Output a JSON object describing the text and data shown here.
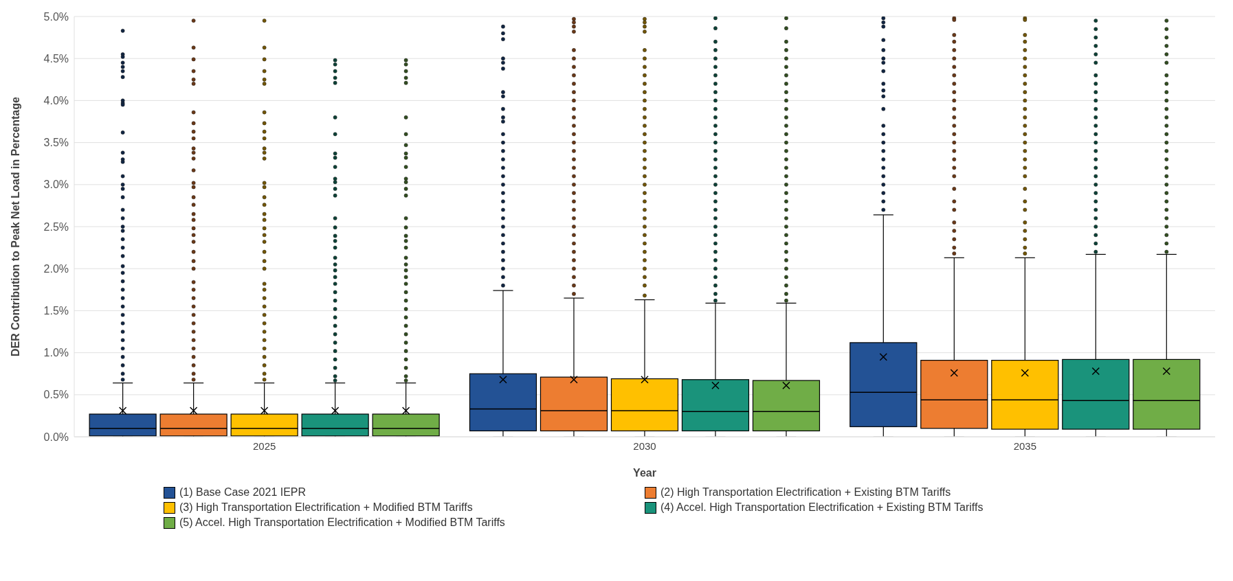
{
  "chart_data": {
    "type": "box",
    "xlabel": "Year",
    "ylabel": "DER Contribution to Peak Net Load in Percentage",
    "categories": [
      "2025",
      "2030",
      "2035"
    ],
    "ylim": [
      0,
      5
    ],
    "yticks": [
      {
        "value": 0,
        "label": "0.0%"
      },
      {
        "value": 0.5,
        "label": "0.5%"
      },
      {
        "value": 1,
        "label": "1.0%"
      },
      {
        "value": 1.5,
        "label": "1.5%"
      },
      {
        "value": 2,
        "label": "2.0%"
      },
      {
        "value": 2.5,
        "label": "2.5%"
      },
      {
        "value": 3,
        "label": "3.0%"
      },
      {
        "value": 3.5,
        "label": "3.5%"
      },
      {
        "value": 4,
        "label": "4.0%"
      },
      {
        "value": 4.5,
        "label": "4.5%"
      },
      {
        "value": 5,
        "label": "5.0%"
      }
    ],
    "grid": "y",
    "legend": "bottom",
    "series": [
      {
        "name": "(1) Base Case 2021 IEPR",
        "color": "#235295",
        "boxes": [
          {
            "low": 0,
            "q1": 0.01,
            "median": 0.1,
            "q3": 0.27,
            "high": 0.64,
            "mean": 0.31,
            "outliers": [
              4.83,
              4.55,
              4.52,
              4.45,
              4.4,
              4.35,
              4.28,
              4.0,
              3.97,
              3.95,
              3.62,
              3.38,
              3.3,
              3.27,
              3.1,
              3.0,
              2.95,
              2.85,
              2.7,
              2.6,
              2.5,
              2.45,
              2.35,
              2.25,
              2.15,
              2.03,
              1.95,
              1.85,
              1.75,
              1.65,
              1.55,
              1.45,
              1.35,
              1.25,
              1.15,
              1.05,
              0.95,
              0.85,
              0.75,
              0.68
            ]
          },
          {
            "low": 0,
            "q1": 0.07,
            "median": 0.33,
            "q3": 0.75,
            "high": 1.74,
            "mean": 0.68,
            "outliers": [
              4.88,
              4.8,
              4.73,
              4.5,
              4.45,
              4.38,
              4.1,
              4.05,
              3.9,
              3.8,
              3.75,
              3.6,
              3.5,
              3.4,
              3.3,
              3.2,
              3.1,
              3.0,
              2.9,
              2.8,
              2.7,
              2.6,
              2.5,
              2.4,
              2.3,
              2.2,
              2.1,
              2.0,
              1.9,
              1.8
            ]
          },
          {
            "low": 0,
            "q1": 0.12,
            "median": 0.53,
            "q3": 1.12,
            "high": 2.64,
            "mean": 0.95,
            "outliers": [
              4.98,
              4.93,
              4.88,
              4.72,
              4.6,
              4.5,
              4.45,
              4.35,
              4.2,
              4.12,
              4.05,
              3.9,
              3.7,
              3.6,
              3.5,
              3.4,
              3.3,
              3.2,
              3.1,
              3.0,
              2.9,
              2.8,
              2.7
            ]
          }
        ]
      },
      {
        "name": "(2) High Transportation Electrification + Existing BTM Tariffs",
        "color": "#ed7d31",
        "boxes": [
          {
            "low": 0,
            "q1": 0.01,
            "median": 0.1,
            "q3": 0.27,
            "high": 0.64,
            "mean": 0.31,
            "outliers": [
              4.95,
              4.63,
              4.49,
              4.35,
              4.25,
              4.2,
              3.86,
              3.73,
              3.63,
              3.55,
              3.43,
              3.38,
              3.31,
              3.17,
              3.02,
              2.97,
              2.85,
              2.76,
              2.65,
              2.58,
              2.48,
              2.4,
              2.32,
              2.2,
              2.09,
              2.0,
              1.84,
              1.75,
              1.65,
              1.55,
              1.45,
              1.35,
              1.25,
              1.15,
              1.05,
              0.95,
              0.85,
              0.75,
              0.68
            ]
          },
          {
            "low": 0,
            "q1": 0.07,
            "median": 0.31,
            "q3": 0.71,
            "high": 1.65,
            "mean": 0.68,
            "outliers": [
              4.97,
              4.93,
              4.88,
              4.82,
              4.6,
              4.5,
              4.4,
              4.3,
              4.2,
              4.1,
              4.0,
              3.9,
              3.8,
              3.7,
              3.6,
              3.5,
              3.4,
              3.3,
              3.2,
              3.1,
              3.0,
              2.9,
              2.8,
              2.7,
              2.6,
              2.5,
              2.4,
              2.3,
              2.2,
              2.1,
              2.0,
              1.9,
              1.8,
              1.7
            ]
          },
          {
            "low": 0,
            "q1": 0.1,
            "median": 0.44,
            "q3": 0.91,
            "high": 2.13,
            "mean": 0.76,
            "outliers": [
              4.98,
              4.96,
              4.78,
              4.7,
              4.6,
              4.5,
              4.4,
              4.3,
              4.2,
              4.1,
              4.0,
              3.9,
              3.8,
              3.7,
              3.6,
              3.5,
              3.4,
              3.3,
              3.2,
              3.1,
              2.95,
              2.8,
              2.7,
              2.55,
              2.45,
              2.35,
              2.25,
              2.18
            ]
          }
        ]
      },
      {
        "name": "(3) High Transportation Electrification + Modified BTM Tariffs",
        "color": "#ffc000",
        "boxes": [
          {
            "low": 0,
            "q1": 0.01,
            "median": 0.1,
            "q3": 0.27,
            "high": 0.64,
            "mean": 0.31,
            "outliers": [
              4.95,
              4.63,
              4.49,
              4.35,
              4.25,
              4.2,
              3.86,
              3.73,
              3.63,
              3.55,
              3.43,
              3.38,
              3.31,
              3.02,
              2.97,
              2.85,
              2.76,
              2.65,
              2.58,
              2.48,
              2.4,
              2.32,
              2.2,
              2.09,
              2.0,
              1.82,
              1.75,
              1.65,
              1.55,
              1.45,
              1.35,
              1.25,
              1.15,
              1.05,
              0.95,
              0.85,
              0.75,
              0.68
            ]
          },
          {
            "low": 0,
            "q1": 0.07,
            "median": 0.31,
            "q3": 0.69,
            "high": 1.63,
            "mean": 0.68,
            "outliers": [
              4.97,
              4.93,
              4.88,
              4.82,
              4.6,
              4.5,
              4.4,
              4.3,
              4.2,
              4.1,
              4.0,
              3.9,
              3.8,
              3.7,
              3.6,
              3.5,
              3.4,
              3.3,
              3.2,
              3.1,
              3.0,
              2.9,
              2.8,
              2.7,
              2.6,
              2.5,
              2.4,
              2.3,
              2.2,
              2.1,
              2.0,
              1.9,
              1.8,
              1.68
            ]
          },
          {
            "low": 0,
            "q1": 0.09,
            "median": 0.44,
            "q3": 0.91,
            "high": 2.13,
            "mean": 0.76,
            "outliers": [
              4.98,
              4.96,
              4.78,
              4.7,
              4.6,
              4.5,
              4.4,
              4.3,
              4.2,
              4.1,
              4.0,
              3.9,
              3.8,
              3.7,
              3.6,
              3.5,
              3.4,
              3.3,
              3.2,
              3.1,
              2.95,
              2.8,
              2.7,
              2.55,
              2.45,
              2.35,
              2.25,
              2.18
            ]
          }
        ]
      },
      {
        "name": "(4) Accel. High Transportation Electrification + Existing BTM Tariffs",
        "color": "#1a937b",
        "boxes": [
          {
            "low": 0,
            "q1": 0.01,
            "median": 0.1,
            "q3": 0.27,
            "high": 0.64,
            "mean": 0.31,
            "outliers": [
              4.48,
              4.43,
              4.35,
              4.27,
              4.21,
              3.8,
              3.6,
              3.37,
              3.32,
              3.21,
              3.07,
              3.03,
              2.95,
              2.87,
              2.6,
              2.49,
              2.39,
              2.33,
              2.25,
              2.13,
              2.05,
              1.98,
              1.9,
              1.82,
              1.72,
              1.62,
              1.52,
              1.42,
              1.32,
              1.22,
              1.12,
              1.02,
              0.92,
              0.82,
              0.72,
              0.67
            ]
          },
          {
            "low": 0,
            "q1": 0.07,
            "median": 0.3,
            "q3": 0.68,
            "high": 1.59,
            "mean": 0.61,
            "outliers": [
              4.98,
              4.86,
              4.7,
              4.6,
              4.5,
              4.4,
              4.3,
              4.2,
              4.1,
              4.0,
              3.9,
              3.8,
              3.7,
              3.6,
              3.5,
              3.4,
              3.3,
              3.2,
              3.1,
              3.0,
              2.9,
              2.8,
              2.7,
              2.6,
              2.5,
              2.4,
              2.3,
              2.2,
              2.1,
              2.0,
              1.9,
              1.8,
              1.7,
              1.62
            ]
          },
          {
            "low": 0,
            "q1": 0.09,
            "median": 0.43,
            "q3": 0.92,
            "high": 2.17,
            "mean": 0.78,
            "outliers": [
              4.95,
              4.85,
              4.75,
              4.65,
              4.55,
              4.45,
              4.3,
              4.2,
              4.1,
              4.0,
              3.9,
              3.8,
              3.7,
              3.6,
              3.5,
              3.4,
              3.3,
              3.2,
              3.1,
              3.0,
              2.9,
              2.8,
              2.7,
              2.6,
              2.5,
              2.4,
              2.3,
              2.2
            ]
          }
        ]
      },
      {
        "name": "(5) Accel. High Transportation Electrification + Modified BTM Tariffs",
        "color": "#70ad47",
        "boxes": [
          {
            "low": 0,
            "q1": 0.01,
            "median": 0.1,
            "q3": 0.27,
            "high": 0.64,
            "mean": 0.31,
            "outliers": [
              4.48,
              4.43,
              4.35,
              4.27,
              4.21,
              3.8,
              3.6,
              3.47,
              3.37,
              3.32,
              3.21,
              3.07,
              3.03,
              2.95,
              2.87,
              2.6,
              2.49,
              2.39,
              2.33,
              2.25,
              2.13,
              2.05,
              1.98,
              1.9,
              1.82,
              1.72,
              1.62,
              1.52,
              1.42,
              1.32,
              1.22,
              1.12,
              1.02,
              0.92,
              0.82,
              0.72,
              0.67
            ]
          },
          {
            "low": 0,
            "q1": 0.07,
            "median": 0.3,
            "q3": 0.67,
            "high": 1.59,
            "mean": 0.61,
            "outliers": [
              4.98,
              4.86,
              4.7,
              4.6,
              4.5,
              4.4,
              4.3,
              4.2,
              4.1,
              4.0,
              3.9,
              3.8,
              3.7,
              3.6,
              3.5,
              3.4,
              3.3,
              3.2,
              3.1,
              3.0,
              2.9,
              2.8,
              2.7,
              2.6,
              2.5,
              2.4,
              2.3,
              2.2,
              2.1,
              2.0,
              1.9,
              1.8,
              1.7,
              1.62
            ]
          },
          {
            "low": 0,
            "q1": 0.09,
            "median": 0.43,
            "q3": 0.92,
            "high": 2.17,
            "mean": 0.78,
            "outliers": [
              4.95,
              4.85,
              4.75,
              4.65,
              4.55,
              4.45,
              4.3,
              4.2,
              4.1,
              4.0,
              3.9,
              3.8,
              3.7,
              3.6,
              3.5,
              3.4,
              3.3,
              3.2,
              3.1,
              3.0,
              2.9,
              2.8,
              2.7,
              2.6,
              2.5,
              2.4,
              2.3,
              2.2
            ]
          }
        ]
      }
    ]
  }
}
